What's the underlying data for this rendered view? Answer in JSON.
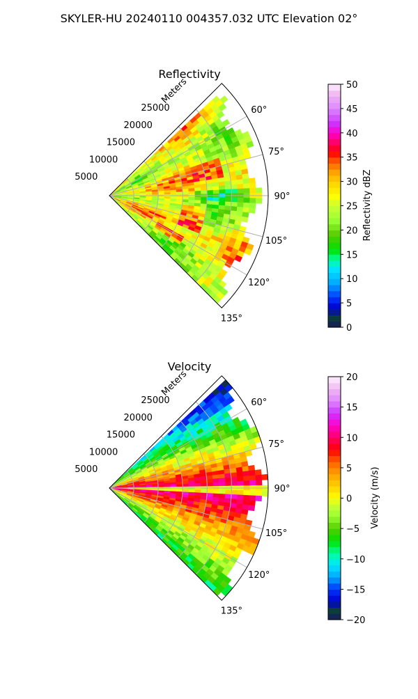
{
  "title": "SKYLER-HU  20240110  004357.032 UTC Elevation 02°",
  "chart_data": [
    {
      "type": "heatmap",
      "projection": "polar-sector",
      "title": "Reflectivity",
      "radial_label": "Meters",
      "radial_ticks": [
        "5000",
        "10000",
        "15000",
        "20000",
        "25000"
      ],
      "radial_tick_values": [
        5000,
        10000,
        15000,
        20000,
        25000
      ],
      "radial_max": 32500,
      "azimuth_range_deg": [
        45,
        135
      ],
      "azimuth_ticks": [
        "60°",
        "75°",
        "90°",
        "105°",
        "120°",
        "135°"
      ],
      "azimuth_tick_values": [
        60,
        75,
        90,
        105,
        120,
        135
      ],
      "grid": true,
      "colorbar": {
        "label": "Reflectivity dBZ",
        "range": [
          0,
          50
        ],
        "ticks": [
          "0",
          "5",
          "10",
          "15",
          "20",
          "25",
          "30",
          "35",
          "40",
          "45",
          "50"
        ],
        "tick_values": [
          0,
          5,
          10,
          15,
          20,
          25,
          30,
          35,
          40,
          45,
          50
        ],
        "stops": [
          {
            "v": 0,
            "c": "#1a1a5c"
          },
          {
            "v": 2,
            "c": "#0b3d3d"
          },
          {
            "v": 4,
            "c": "#0000cc"
          },
          {
            "v": 6,
            "c": "#0033ff"
          },
          {
            "v": 9,
            "c": "#00a8ff"
          },
          {
            "v": 12,
            "c": "#00e5ff"
          },
          {
            "v": 14,
            "c": "#00ff99"
          },
          {
            "v": 16,
            "c": "#00e000"
          },
          {
            "v": 19,
            "c": "#55cc00"
          },
          {
            "v": 22,
            "c": "#99ff33"
          },
          {
            "v": 25,
            "c": "#ccff33"
          },
          {
            "v": 27,
            "c": "#ffff00"
          },
          {
            "v": 30,
            "c": "#ffd000"
          },
          {
            "v": 32,
            "c": "#ffa000"
          },
          {
            "v": 34,
            "c": "#ff6000"
          },
          {
            "v": 36,
            "c": "#ff0000"
          },
          {
            "v": 38,
            "c": "#ff0066"
          },
          {
            "v": 40,
            "c": "#ff00cc"
          },
          {
            "v": 42,
            "c": "#cc33ff"
          },
          {
            "v": 45,
            "c": "#dd88ff"
          },
          {
            "v": 48,
            "c": "#f0b8f0"
          },
          {
            "v": 50,
            "c": "#fff0ff"
          }
        ]
      }
    },
    {
      "type": "heatmap",
      "projection": "polar-sector",
      "title": "Velocity",
      "radial_label": "Meters",
      "radial_ticks": [
        "5000",
        "10000",
        "15000",
        "20000",
        "25000"
      ],
      "radial_tick_values": [
        5000,
        10000,
        15000,
        20000,
        25000
      ],
      "radial_max": 32500,
      "azimuth_range_deg": [
        45,
        135
      ],
      "azimuth_ticks": [
        "60°",
        "75°",
        "90°",
        "105°",
        "120°",
        "135°"
      ],
      "azimuth_tick_values": [
        60,
        75,
        90,
        105,
        120,
        135
      ],
      "grid": true,
      "colorbar": {
        "label": "Velocity (m/s)",
        "range": [
          -20,
          20
        ],
        "ticks": [
          "−20",
          "−15",
          "−10",
          "−5",
          "0",
          "5",
          "10",
          "15",
          "20"
        ],
        "tick_values": [
          -20,
          -15,
          -10,
          -5,
          0,
          5,
          10,
          15,
          20
        ],
        "stops": [
          {
            "v": -20,
            "c": "#1a1a5c"
          },
          {
            "v": -18.5,
            "c": "#0b3d3d"
          },
          {
            "v": -17,
            "c": "#0000cc"
          },
          {
            "v": -15,
            "c": "#0033ff"
          },
          {
            "v": -13,
            "c": "#00a8ff"
          },
          {
            "v": -11,
            "c": "#00e5ff"
          },
          {
            "v": -9,
            "c": "#00ff99"
          },
          {
            "v": -7,
            "c": "#00e000"
          },
          {
            "v": -5,
            "c": "#55cc00"
          },
          {
            "v": -3,
            "c": "#99ff33"
          },
          {
            "v": -1,
            "c": "#ccff33"
          },
          {
            "v": 0,
            "c": "#ffff00"
          },
          {
            "v": 2,
            "c": "#ffd000"
          },
          {
            "v": 4,
            "c": "#ffa000"
          },
          {
            "v": 6,
            "c": "#ff6000"
          },
          {
            "v": 8,
            "c": "#ff0000"
          },
          {
            "v": 10,
            "c": "#ff0066"
          },
          {
            "v": 12,
            "c": "#ff00cc"
          },
          {
            "v": 14,
            "c": "#cc33ff"
          },
          {
            "v": 16,
            "c": "#dd88ff"
          },
          {
            "v": 18,
            "c": "#f0b8f0"
          },
          {
            "v": 20,
            "c": "#fff0ff"
          }
        ]
      }
    }
  ]
}
